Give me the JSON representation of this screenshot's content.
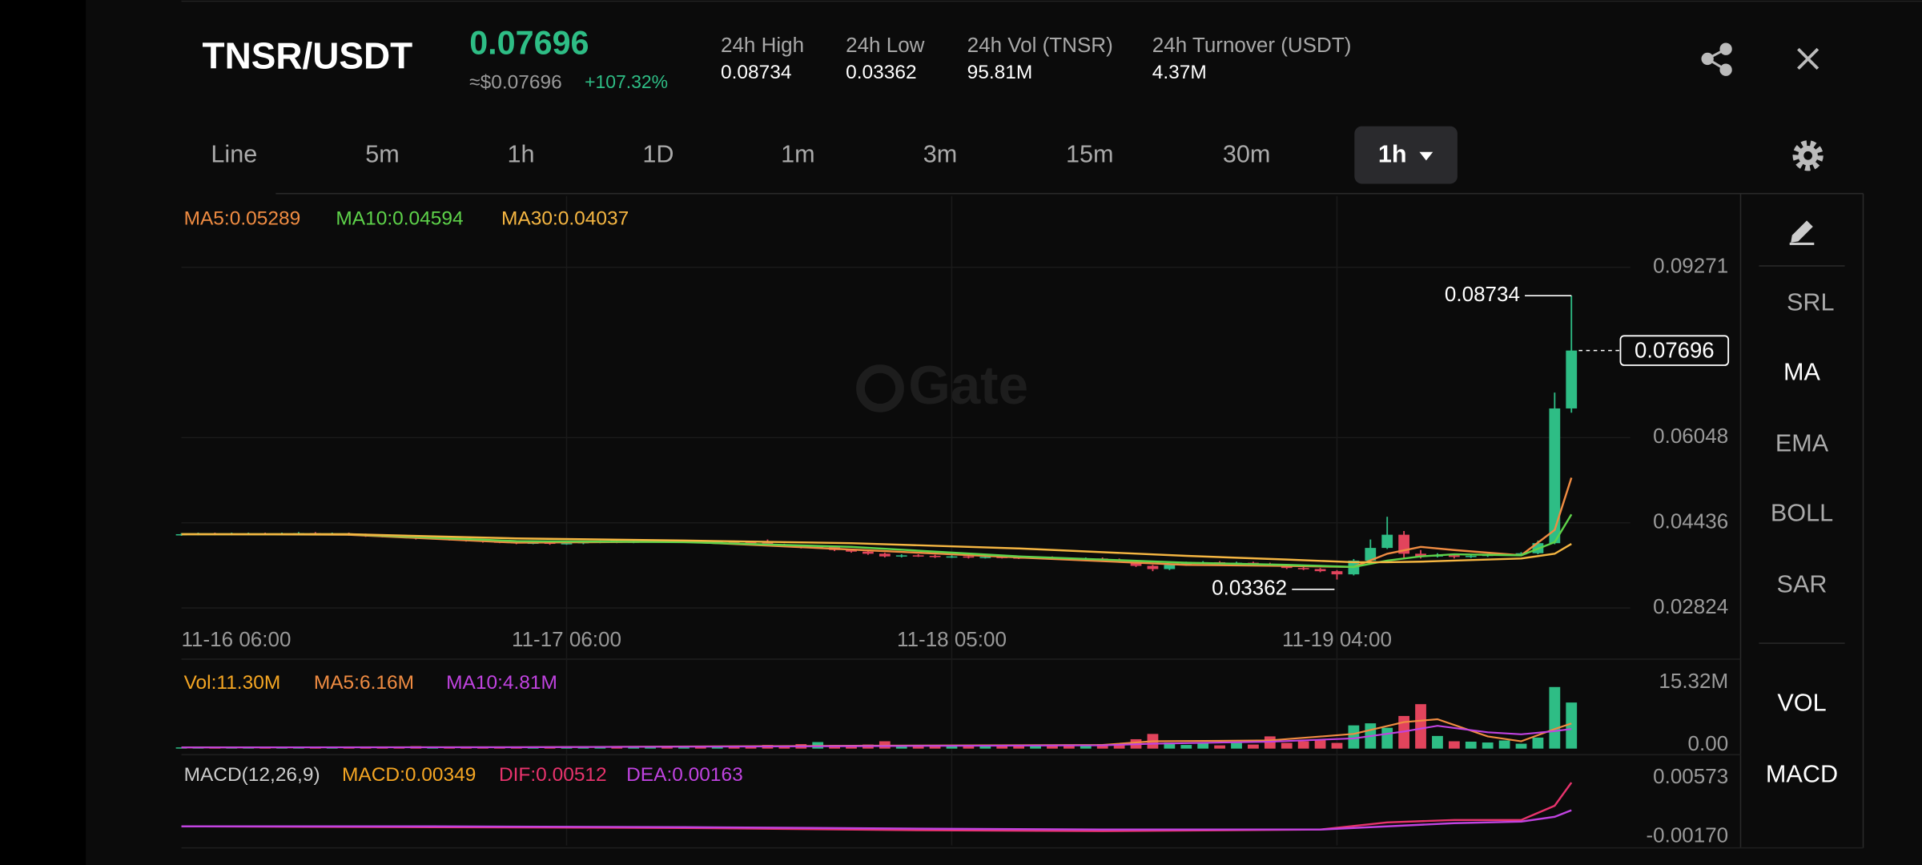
{
  "header": {
    "pair": "TNSR/USDT",
    "price": "0.07696",
    "approx": "≈$0.07696",
    "change": "+107.32%",
    "stats": [
      {
        "label": "24h High",
        "value": "0.08734"
      },
      {
        "label": "24h Low",
        "value": "0.03362"
      },
      {
        "label": "24h Vol (TNSR)",
        "value": "95.81M"
      },
      {
        "label": "24h Turnover (USDT)",
        "value": "4.37M"
      }
    ]
  },
  "tabs": [
    "Line",
    "5m",
    "1h",
    "1D",
    "1m",
    "3m",
    "15m",
    "30m",
    "1h"
  ],
  "side_menu": [
    "SRL",
    "MA",
    "EMA",
    "BOLL",
    "SAR",
    "VOL",
    "MACD"
  ],
  "chart_data": {
    "type": "candlestick",
    "watermark": "Gate",
    "grid": true,
    "up_color": "#2ebd85",
    "down_color": "#e2445c",
    "xlim": [
      0,
      83
    ],
    "ylim": [
      0.0262,
      0.1062
    ],
    "yticks": [
      0.09271,
      0.06048,
      0.04436,
      0.02824
    ],
    "xticks": [
      {
        "value": 0,
        "label": "11-16 06:00"
      },
      {
        "value": 23,
        "label": "11-17 06:00"
      },
      {
        "value": 46,
        "label": "11-18 05:00"
      },
      {
        "value": 69,
        "label": "11-19 04:00"
      }
    ],
    "annotations": {
      "high": 0.08734,
      "low": 0.03362,
      "last": 0.07696
    },
    "candles": [
      [
        0.0421,
        0.0424,
        0.0419,
        0.0422
      ],
      [
        0.0422,
        0.0425,
        0.042,
        0.0423
      ],
      [
        0.0423,
        0.0425,
        0.042,
        0.0422
      ],
      [
        0.0422,
        0.0425,
        0.042,
        0.0423
      ],
      [
        0.0423,
        0.0425,
        0.0421,
        0.0423
      ],
      [
        0.0423,
        0.0425,
        0.042,
        0.0422
      ],
      [
        0.0422,
        0.0425,
        0.042,
        0.0423
      ],
      [
        0.0423,
        0.0426,
        0.0421,
        0.0424
      ],
      [
        0.0424,
        0.0426,
        0.0421,
        0.0423
      ],
      [
        0.0423,
        0.0425,
        0.0421,
        0.0423
      ],
      [
        0.0423,
        0.0425,
        0.0419,
        0.0421
      ],
      [
        0.0421,
        0.0423,
        0.0417,
        0.0419
      ],
      [
        0.0419,
        0.0421,
        0.0416,
        0.0418
      ],
      [
        0.0418,
        0.042,
        0.0415,
        0.0417
      ],
      [
        0.0417,
        0.0419,
        0.0412,
        0.0414
      ],
      [
        0.0414,
        0.0417,
        0.0412,
        0.0415
      ],
      [
        0.0415,
        0.0417,
        0.041,
        0.0412
      ],
      [
        0.0412,
        0.0414,
        0.0408,
        0.041
      ],
      [
        0.041,
        0.0412,
        0.0406,
        0.0408
      ],
      [
        0.0408,
        0.041,
        0.0405,
        0.0407
      ],
      [
        0.0407,
        0.0409,
        0.0403,
        0.0405
      ],
      [
        0.0405,
        0.0408,
        0.0403,
        0.0406
      ],
      [
        0.0406,
        0.0408,
        0.0402,
        0.0404
      ],
      [
        0.0404,
        0.0407,
        0.0402,
        0.0405
      ],
      [
        0.0405,
        0.0409,
        0.0403,
        0.0407
      ],
      [
        0.0407,
        0.041,
        0.0405,
        0.0408
      ],
      [
        0.0408,
        0.041,
        0.0405,
        0.0407
      ],
      [
        0.0407,
        0.041,
        0.0405,
        0.0408
      ],
      [
        0.0408,
        0.0411,
        0.0406,
        0.0409
      ],
      [
        0.0409,
        0.0411,
        0.0406,
        0.0408
      ],
      [
        0.0408,
        0.0411,
        0.0406,
        0.0409
      ],
      [
        0.0409,
        0.0411,
        0.0406,
        0.0408
      ],
      [
        0.0408,
        0.041,
        0.0406,
        0.0408
      ],
      [
        0.0408,
        0.041,
        0.0405,
        0.0407
      ],
      [
        0.0407,
        0.0409,
        0.0404,
        0.0406
      ],
      [
        0.0406,
        0.0412,
        0.04,
        0.0402
      ],
      [
        0.0402,
        0.0404,
        0.0398,
        0.04
      ],
      [
        0.04,
        0.0402,
        0.0395,
        0.0397
      ],
      [
        0.0397,
        0.04,
        0.0395,
        0.0398
      ],
      [
        0.0398,
        0.04,
        0.039,
        0.0392
      ],
      [
        0.0392,
        0.0394,
        0.0387,
        0.0389
      ],
      [
        0.0389,
        0.0391,
        0.0383,
        0.0385
      ],
      [
        0.0385,
        0.0387,
        0.0378,
        0.038
      ],
      [
        0.038,
        0.0384,
        0.0378,
        0.0382
      ],
      [
        0.0382,
        0.0384,
        0.0379,
        0.0381
      ],
      [
        0.0381,
        0.0383,
        0.0377,
        0.0379
      ],
      [
        0.0379,
        0.0382,
        0.0377,
        0.038
      ],
      [
        0.038,
        0.0382,
        0.0376,
        0.0378
      ],
      [
        0.0378,
        0.0381,
        0.0376,
        0.0379
      ],
      [
        0.0379,
        0.0381,
        0.0376,
        0.0378
      ],
      [
        0.0378,
        0.038,
        0.0375,
        0.0377
      ],
      [
        0.0377,
        0.038,
        0.0375,
        0.0378
      ],
      [
        0.0378,
        0.038,
        0.0374,
        0.0376
      ],
      [
        0.0376,
        0.0378,
        0.0373,
        0.0375
      ],
      [
        0.0375,
        0.0378,
        0.0373,
        0.0376
      ],
      [
        0.0376,
        0.0378,
        0.0372,
        0.0374
      ],
      [
        0.0374,
        0.0376,
        0.0368,
        0.037
      ],
      [
        0.037,
        0.0372,
        0.036,
        0.0362
      ],
      [
        0.0362,
        0.0364,
        0.0352,
        0.0356
      ],
      [
        0.0356,
        0.0366,
        0.0354,
        0.0364
      ],
      [
        0.0364,
        0.037,
        0.0362,
        0.0368
      ],
      [
        0.0368,
        0.0371,
        0.0366,
        0.0369
      ],
      [
        0.0369,
        0.0371,
        0.0365,
        0.0367
      ],
      [
        0.0367,
        0.037,
        0.0365,
        0.0368
      ],
      [
        0.0368,
        0.037,
        0.0364,
        0.0366
      ],
      [
        0.0366,
        0.0368,
        0.0361,
        0.0363
      ],
      [
        0.0363,
        0.0365,
        0.0356,
        0.0358
      ],
      [
        0.0358,
        0.036,
        0.0354,
        0.0356
      ],
      [
        0.0356,
        0.0358,
        0.035,
        0.0352
      ],
      [
        0.0352,
        0.0354,
        0.03362,
        0.0346
      ],
      [
        0.0346,
        0.0375,
        0.0344,
        0.0372
      ],
      [
        0.0372,
        0.0412,
        0.037,
        0.0396
      ],
      [
        0.0396,
        0.0455,
        0.0394,
        0.0421
      ],
      [
        0.0421,
        0.0428,
        0.0375,
        0.0385
      ],
      [
        0.0385,
        0.0392,
        0.0376,
        0.038
      ],
      [
        0.038,
        0.0386,
        0.0378,
        0.0382
      ],
      [
        0.0382,
        0.0384,
        0.0376,
        0.0379
      ],
      [
        0.0379,
        0.0383,
        0.0377,
        0.0381
      ],
      [
        0.0381,
        0.0385,
        0.0379,
        0.0383
      ],
      [
        0.0383,
        0.0386,
        0.0381,
        0.0384
      ],
      [
        0.0384,
        0.0388,
        0.0382,
        0.0386
      ],
      [
        0.0386,
        0.041,
        0.0384,
        0.0405
      ],
      [
        0.0405,
        0.069,
        0.0403,
        0.066
      ],
      [
        0.066,
        0.08734,
        0.0652,
        0.07696
      ]
    ],
    "series": [
      {
        "name": "MA5:0.05289",
        "color": "#f08c42",
        "x": [
          0,
          10,
          20,
          30,
          40,
          50,
          60,
          66,
          70,
          72,
          74,
          76,
          80,
          82,
          83
        ],
        "values": [
          0.0422,
          0.0421,
          0.0406,
          0.0408,
          0.0393,
          0.0378,
          0.0364,
          0.0362,
          0.036,
          0.0385,
          0.0398,
          0.0392,
          0.0382,
          0.043,
          0.05289
        ]
      },
      {
        "name": "MA10:0.04594",
        "color": "#5ed34a",
        "x": [
          0,
          10,
          20,
          30,
          40,
          50,
          60,
          66,
          70,
          72,
          74,
          76,
          80,
          82,
          83
        ],
        "values": [
          0.0422,
          0.0422,
          0.0409,
          0.0407,
          0.0398,
          0.038,
          0.0368,
          0.0364,
          0.036,
          0.0372,
          0.038,
          0.0384,
          0.0382,
          0.0407,
          0.04594
        ]
      },
      {
        "name": "MA30:0.04037",
        "color": "#f5b642",
        "x": [
          0,
          10,
          20,
          30,
          40,
          50,
          60,
          66,
          70,
          72,
          74,
          76,
          80,
          82,
          83
        ],
        "values": [
          0.0422,
          0.0422,
          0.0414,
          0.041,
          0.0405,
          0.0395,
          0.0381,
          0.0374,
          0.0369,
          0.0369,
          0.037,
          0.0372,
          0.0376,
          0.0385,
          0.04037
        ]
      }
    ],
    "volume": {
      "ylim": [
        0,
        15320000
      ],
      "yticks": [
        {
          "value": 15320000,
          "label": "15.32M"
        },
        {
          "value": 0,
          "label": "0.00"
        }
      ],
      "values": [
        300000,
        250000,
        400000,
        200000,
        300000,
        350000,
        250000,
        300000,
        200000,
        280000,
        450000,
        500000,
        350000,
        400000,
        600000,
        300000,
        450000,
        500000,
        350000,
        300000,
        400000,
        350000,
        300000,
        250000,
        300000,
        350000,
        300000,
        280000,
        250000,
        300000,
        300000,
        350000,
        400000,
        450000,
        600000,
        900000,
        700000,
        1100000,
        1600000,
        900000,
        800000,
        1000000,
        1800000,
        900000,
        700000,
        800000,
        600000,
        900000,
        700000,
        800000,
        600000,
        900000,
        800000,
        700000,
        1000000,
        1100000,
        1200000,
        2300000,
        3600000,
        1500000,
        900000,
        1300000,
        800000,
        1700000,
        1000000,
        3000000,
        1400000,
        1800000,
        2100000,
        1400000,
        5700000,
        6200000,
        5100000,
        8000000,
        10900000,
        3100000,
        1800000,
        1700000,
        1500000,
        2000000,
        1200000,
        2700000,
        15100000,
        11300000
      ],
      "series": [
        {
          "name": "Vol:11.30M",
          "color": "#f5a623"
        },
        {
          "name": "MA5:6.16M",
          "color": "#f08c42",
          "x": [
            0,
            20,
            40,
            55,
            58,
            65,
            70,
            73,
            75,
            78,
            80,
            82,
            83
          ],
          "values": [
            300000,
            350000,
            700000,
            900000,
            1800000,
            2000000,
            3600000,
            6500000,
            7200000,
            3000000,
            1800000,
            4800000,
            6160000
          ]
        },
        {
          "name": "MA10:4.81M",
          "color": "#c043e0",
          "x": [
            0,
            20,
            40,
            55,
            58,
            65,
            70,
            73,
            75,
            78,
            80,
            82,
            83
          ],
          "values": [
            300000,
            330000,
            600000,
            800000,
            1200000,
            1700000,
            2500000,
            4200000,
            5600000,
            4000000,
            3500000,
            4300000,
            4810000
          ]
        }
      ]
    },
    "macd": {
      "ylim": [
        -0.0028,
        0.0077
      ],
      "yticks": [
        0.00573,
        {
          "value": -0.0017,
          "label": "-0.00170"
        }
      ],
      "series": [
        {
          "name": "MACD(12,26,9)",
          "color": "#cccccc"
        },
        {
          "name": "MACD:0.00349",
          "color": "#f5a623"
        },
        {
          "name": "DIF:0.00512",
          "color": "#e8336d",
          "x": [
            0,
            15,
            30,
            45,
            55,
            62,
            68,
            72,
            76,
            80,
            82,
            83
          ],
          "values": [
            -0.0004,
            -0.0005,
            -0.0006,
            -0.0009,
            -0.001,
            -0.0009,
            -0.0008,
            0.0001,
            0.0004,
            0.0004,
            0.0022,
            0.00512
          ]
        },
        {
          "name": "DEA:0.00163",
          "color": "#c043e0",
          "x": [
            0,
            15,
            30,
            45,
            55,
            62,
            68,
            72,
            76,
            80,
            82,
            83
          ],
          "values": [
            -0.0004,
            -0.0004,
            -0.0005,
            -0.0007,
            -0.0008,
            -0.0008,
            -0.0008,
            -0.0004,
            0,
            0.0002,
            0.0008,
            0.00163
          ]
        }
      ]
    }
  }
}
